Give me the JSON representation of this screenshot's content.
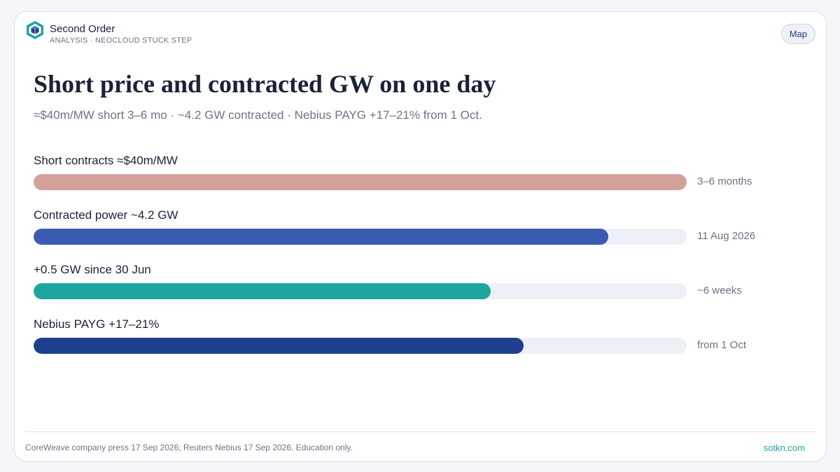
{
  "brand": {
    "name": "Second Order",
    "subtitle": "ANALYSIS · NEOCLOUD STUCK STEP",
    "logo_icon": "hexagon-cube-icon"
  },
  "header": {
    "map_button": "Map"
  },
  "main": {
    "title": "Short price and contracted GW on one day",
    "subtitle": "≈$40m/MW short 3–6 mo · ~4.2 GW contracted · Nebius PAYG +17–21% from 1 Oct."
  },
  "colors": {
    "accent_teal": "#1fa5a0",
    "bar_track": "#edf0f7",
    "navy_text": "#1a2238"
  },
  "bars": [
    {
      "label": "Short contracts ≈$40m/MW",
      "note": "3–6 months",
      "fill": 1.0,
      "color": "#d4a19a"
    },
    {
      "label": "Contracted power ~4.2 GW",
      "note": "11 Aug 2026",
      "fill": 0.88,
      "color": "#3a5bb0"
    },
    {
      "label": "+0.5 GW since 30 Jun",
      "note": "~6 weeks",
      "fill": 0.7,
      "color": "#1fa5a0"
    },
    {
      "label": "Nebius PAYG +17–21%",
      "note": "from 1 Oct",
      "fill": 0.75,
      "color": "#1f3f8f"
    }
  ],
  "footer": {
    "source": "CoreWeave company press 17 Sep 2026; Reuters Nebius 17 Sep 2026. Education only.",
    "link": "sotkn.com"
  }
}
